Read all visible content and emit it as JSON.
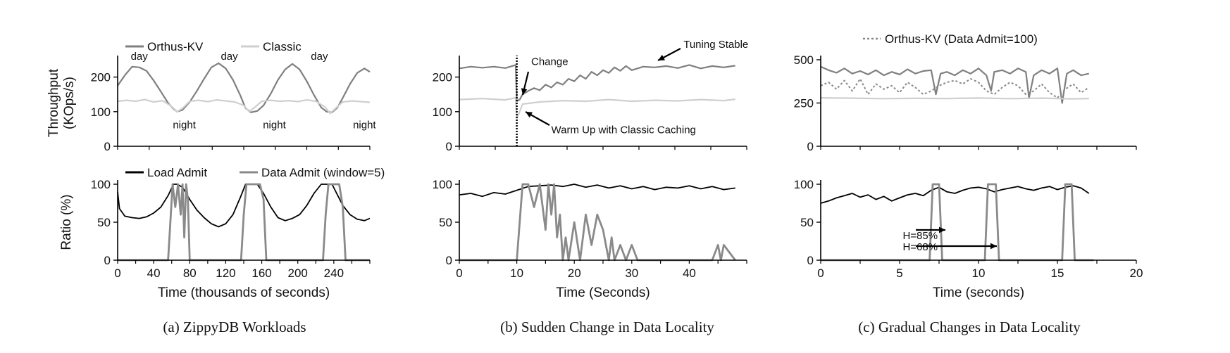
{
  "figure": {
    "captions": {
      "a": "(a) ZippyDB Workloads",
      "b": "(b) Sudden Change in Data Locality",
      "c": "(c) Gradual Changes in Data Locality"
    }
  },
  "chart_data": [
    {
      "id": "a-top",
      "type": "line",
      "ylabel": "Throughput",
      "ylabel2": "(KOps/s)",
      "xlim": [
        0,
        280
      ],
      "ylim": [
        0,
        250
      ],
      "yticks": [
        0,
        100,
        200
      ],
      "xticks": [],
      "legend_placement": "top-left",
      "series": [
        {
          "name": "Orthus-KV",
          "color": "#7f7f7f",
          "width": 2.2,
          "x": [
            0,
            8,
            16,
            24,
            32,
            40,
            48,
            56,
            62,
            66,
            72,
            80,
            88,
            96,
            104,
            112,
            120,
            128,
            136,
            142,
            148,
            155,
            162,
            170,
            178,
            186,
            194,
            202,
            210,
            218,
            226,
            232,
            238,
            244,
            250,
            258,
            266,
            274,
            280
          ],
          "y": [
            175,
            205,
            230,
            228,
            218,
            190,
            158,
            125,
            108,
            100,
            105,
            128,
            160,
            195,
            228,
            240,
            225,
            192,
            148,
            110,
            98,
            102,
            118,
            152,
            192,
            222,
            238,
            222,
            188,
            148,
            112,
            100,
            98,
            112,
            140,
            180,
            212,
            225,
            215
          ]
        },
        {
          "name": "Classic",
          "color": "#cfcfcf",
          "width": 2.2,
          "x": [
            0,
            10,
            20,
            30,
            40,
            50,
            60,
            66,
            72,
            80,
            90,
            100,
            110,
            120,
            130,
            140,
            146,
            152,
            160,
            170,
            180,
            190,
            200,
            210,
            220,
            230,
            236,
            242,
            250,
            260,
            270,
            280
          ],
          "y": [
            130,
            133,
            130,
            135,
            128,
            132,
            115,
            100,
            110,
            130,
            133,
            129,
            134,
            131,
            128,
            118,
            100,
            112,
            130,
            133,
            130,
            132,
            129,
            134,
            130,
            114,
            95,
            110,
            128,
            131,
            129,
            127
          ]
        }
      ],
      "annotations": [
        {
          "text": "day",
          "x": 24,
          "y": 250
        },
        {
          "text": "day",
          "x": 124,
          "y": 250
        },
        {
          "text": "day",
          "x": 224,
          "y": 250
        },
        {
          "text": "night",
          "x": 74,
          "y": 52
        },
        {
          "text": "night",
          "x": 174,
          "y": 52
        },
        {
          "text": "night",
          "x": 274,
          "y": 52
        }
      ]
    },
    {
      "id": "a-bottom",
      "type": "line",
      "ylabel": "Ratio (%)",
      "xlabel": "Time (thousands of seconds)",
      "xlim": [
        0,
        280
      ],
      "ylim": [
        0,
        100
      ],
      "yticks": [
        0,
        50,
        100
      ],
      "xticks": [
        0,
        40,
        80,
        120,
        160,
        200,
        240
      ],
      "legend_placement": "top-left",
      "series": [
        {
          "name": "Load Admit",
          "color": "#000000",
          "width": 1.8,
          "x": [
            0,
            2,
            8,
            16,
            24,
            32,
            40,
            48,
            56,
            62,
            66,
            72,
            80,
            88,
            96,
            104,
            112,
            120,
            128,
            136,
            142,
            148,
            155,
            162,
            170,
            178,
            186,
            194,
            202,
            210,
            218,
            226,
            232,
            238,
            244,
            250,
            258,
            266,
            274,
            280
          ],
          "y": [
            90,
            68,
            58,
            56,
            55,
            57,
            62,
            70,
            85,
            100,
            100,
            96,
            80,
            66,
            56,
            48,
            44,
            48,
            60,
            82,
            100,
            100,
            100,
            88,
            70,
            56,
            52,
            55,
            60,
            72,
            88,
            100,
            100,
            100,
            86,
            72,
            60,
            54,
            52,
            55
          ]
        },
        {
          "name": "Data Admit (window=5)",
          "color": "#8a8a8a",
          "width": 2.8,
          "x": [
            0,
            56,
            58,
            61,
            64,
            67,
            70,
            72,
            74,
            76,
            78,
            80,
            137,
            140,
            143,
            150,
            158,
            162,
            165,
            166,
            228,
            231,
            234,
            240,
            246,
            250,
            253,
            254,
            280
          ],
          "y": [
            0,
            0,
            40,
            100,
            70,
            100,
            60,
            100,
            30,
            100,
            80,
            0,
            0,
            60,
            100,
            100,
            100,
            80,
            0,
            0,
            0,
            60,
            100,
            100,
            100,
            70,
            0,
            0,
            0
          ]
        }
      ]
    },
    {
      "id": "b-top",
      "type": "line",
      "xlim": [
        0,
        50
      ],
      "ylim": [
        0,
        250
      ],
      "yticks": [
        0,
        100,
        200
      ],
      "xticks": [],
      "series": [
        {
          "name": "Orthus-KV",
          "color": "#7f7f7f",
          "width": 2.2,
          "x": [
            0,
            2,
            4,
            6,
            8,
            9.8,
            10,
            10.5,
            11,
            12,
            13,
            14,
            15,
            16,
            17,
            18,
            19,
            20,
            21,
            22,
            23,
            24,
            25,
            26,
            27,
            28,
            29,
            30,
            32,
            34,
            36,
            38,
            40,
            42,
            44,
            46,
            48
          ],
          "y": [
            225,
            230,
            227,
            230,
            226,
            235,
            130,
            135,
            150,
            160,
            168,
            162,
            178,
            170,
            185,
            178,
            195,
            188,
            205,
            195,
            215,
            205,
            220,
            212,
            228,
            218,
            232,
            220,
            230,
            228,
            232,
            226,
            235,
            225,
            232,
            228,
            233
          ]
        },
        {
          "name": "Classic",
          "color": "#cfcfcf",
          "width": 2.2,
          "x": [
            0,
            4,
            8,
            9.8,
            10,
            10.5,
            11,
            14,
            18,
            22,
            26,
            30,
            34,
            38,
            42,
            46,
            48
          ],
          "y": [
            135,
            138,
            134,
            140,
            80,
            100,
            122,
            128,
            132,
            130,
            135,
            130,
            133,
            131,
            135,
            132,
            136
          ]
        }
      ],
      "markers": [
        {
          "x": 10,
          "style": "dotted",
          "label": "change-line"
        }
      ],
      "annotations": [
        {
          "text": "Change",
          "x": 12.5,
          "y": 235
        },
        {
          "text": "Tuning Stable",
          "x": 39,
          "y": 285
        },
        {
          "text": "Warm Up with Classic Caching",
          "x": 16,
          "y": 38
        }
      ]
    },
    {
      "id": "b-bottom",
      "type": "line",
      "xlabel": "Time (Seconds)",
      "xlim": [
        0,
        50
      ],
      "ylim": [
        0,
        100
      ],
      "yticks": [
        0,
        50,
        100
      ],
      "xticks": [
        0,
        10,
        20,
        30,
        40
      ],
      "series": [
        {
          "name": "Load Admit",
          "color": "#000000",
          "width": 1.8,
          "x": [
            0,
            2,
            4,
            6,
            8,
            10,
            12,
            14,
            16,
            18,
            20,
            22,
            24,
            26,
            28,
            30,
            32,
            34,
            36,
            38,
            40,
            42,
            44,
            46,
            48
          ],
          "y": [
            86,
            88,
            84,
            89,
            87,
            92,
            97,
            98,
            99,
            97,
            100,
            96,
            99,
            95,
            98,
            94,
            97,
            93,
            96,
            95,
            98,
            94,
            97,
            93,
            95
          ]
        },
        {
          "name": "Data Admit (window=5)",
          "color": "#8a8a8a",
          "width": 2.8,
          "x": [
            0,
            10,
            11,
            12,
            13,
            14,
            15,
            15.5,
            16,
            16.5,
            17,
            17.5,
            18,
            18.5,
            19,
            20,
            21,
            22,
            23,
            24,
            25,
            26,
            26.5,
            27,
            28,
            29,
            30,
            31,
            32,
            33,
            44,
            45,
            45.5,
            46,
            48
          ],
          "y": [
            0,
            0,
            100,
            100,
            70,
            100,
            40,
            100,
            60,
            100,
            30,
            60,
            0,
            30,
            0,
            50,
            0,
            60,
            20,
            60,
            40,
            0,
            30,
            0,
            20,
            0,
            20,
            0,
            0,
            0,
            0,
            20,
            0,
            20,
            0
          ]
        }
      ]
    },
    {
      "id": "c-top",
      "type": "line",
      "xlim": [
        0,
        20
      ],
      "ylim": [
        0,
        500
      ],
      "yticks": [
        0,
        250,
        500
      ],
      "xticks": [],
      "legend_placement": "top",
      "series": [
        {
          "name": "Orthus-KV",
          "color": "#7f7f7f",
          "width": 2.2,
          "x": [
            0,
            0.5,
            1,
            1.5,
            2,
            2.5,
            3,
            3.5,
            4,
            4.5,
            5,
            5.5,
            6,
            6.5,
            7,
            7.3,
            7.6,
            8,
            8.5,
            9,
            9.5,
            10,
            10.5,
            10.8,
            11,
            11.5,
            12,
            12.5,
            13,
            13.2,
            13.5,
            14,
            14.5,
            15,
            15.3,
            15.6,
            16,
            16.5,
            17
          ],
          "y": [
            460,
            440,
            425,
            450,
            420,
            435,
            415,
            440,
            410,
            430,
            415,
            445,
            420,
            435,
            440,
            300,
            420,
            430,
            410,
            440,
            420,
            450,
            410,
            320,
            430,
            440,
            420,
            450,
            430,
            280,
            410,
            440,
            420,
            450,
            250,
            420,
            440,
            410,
            420
          ]
        },
        {
          "name": "Orthus-KV (Data Admit=100)",
          "color": "#888888",
          "width": 2,
          "dash": "3,3",
          "x": [
            0,
            0.5,
            1,
            1.5,
            2,
            2.5,
            3,
            3.5,
            4,
            4.5,
            5,
            5.5,
            6,
            6.5,
            7,
            7.5,
            8,
            8.5,
            9,
            9.5,
            10,
            10.5,
            11,
            11.5,
            12,
            12.5,
            13,
            13.5,
            14,
            14.5,
            15,
            15.5,
            16,
            16.5,
            17
          ],
          "y": [
            350,
            370,
            330,
            380,
            320,
            390,
            300,
            360,
            330,
            350,
            310,
            370,
            340,
            300,
            320,
            350,
            370,
            380,
            360,
            390,
            370,
            320,
            300,
            340,
            370,
            350,
            300,
            320,
            360,
            310,
            280,
            330,
            360,
            310,
            340
          ]
        },
        {
          "name": "Classic",
          "color": "#cfcfcf",
          "width": 2.2,
          "x": [
            0,
            2,
            4,
            6,
            8,
            10,
            12,
            14,
            16,
            17
          ],
          "y": [
            280,
            278,
            275,
            277,
            276,
            279,
            275,
            278,
            274,
            276
          ]
        }
      ]
    },
    {
      "id": "c-bottom",
      "type": "line",
      "xlabel": "Time (seconds)",
      "xlim": [
        0,
        20
      ],
      "ylim": [
        0,
        100
      ],
      "yticks": [
        0,
        50,
        100
      ],
      "xticks": [
        0,
        5,
        10,
        15,
        20
      ],
      "series": [
        {
          "name": "Load Admit",
          "color": "#000000",
          "width": 1.8,
          "x": [
            0,
            0.5,
            1,
            1.5,
            2,
            2.5,
            3,
            3.5,
            4,
            4.5,
            5,
            5.5,
            6,
            6.5,
            7,
            7.5,
            8,
            8.5,
            9,
            9.5,
            10,
            10.5,
            11,
            11.5,
            12,
            12.5,
            13,
            13.5,
            14,
            14.5,
            15,
            15.5,
            16,
            16.5,
            17
          ],
          "y": [
            75,
            78,
            82,
            85,
            88,
            83,
            86,
            80,
            84,
            78,
            82,
            86,
            88,
            85,
            92,
            96,
            90,
            88,
            92,
            95,
            96,
            94,
            90,
            93,
            95,
            97,
            94,
            92,
            95,
            97,
            93,
            96,
            98,
            95,
            88
          ]
        },
        {
          "name": "Data Admit (window=5)",
          "color": "#8a8a8a",
          "width": 2.8,
          "x": [
            0,
            6.9,
            7.1,
            7.5,
            7.7,
            10.4,
            10.6,
            11.1,
            11.3,
            15.3,
            15.5,
            15.9,
            16.1,
            17.3
          ],
          "y": [
            0,
            0,
            100,
            100,
            0,
            0,
            100,
            100,
            0,
            0,
            100,
            100,
            0,
            0
          ]
        }
      ],
      "annotations": [
        {
          "text": "H=85%",
          "x": 5.2,
          "y": 28
        },
        {
          "text": "H=68%",
          "x": 5.2,
          "y": 13
        }
      ]
    }
  ]
}
